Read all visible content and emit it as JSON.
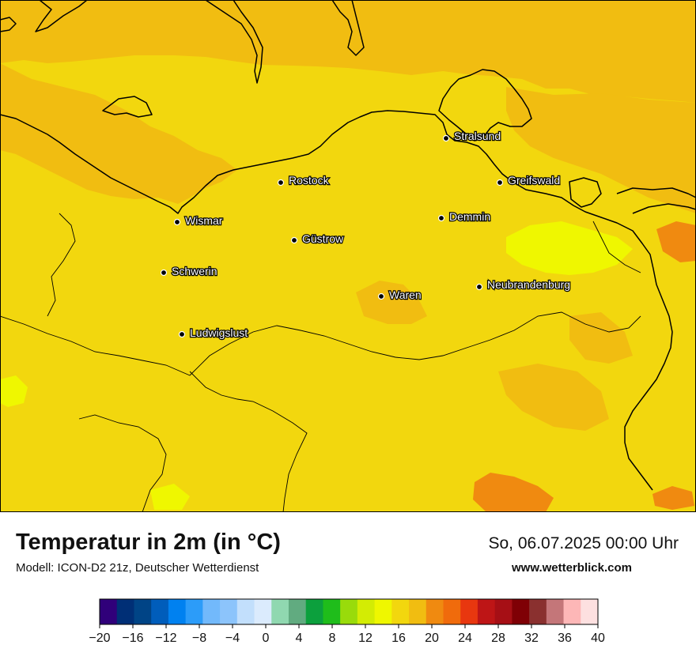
{
  "header": {
    "title": "Temperatur in 2m (in °C)",
    "model": "Modell: ICON-D2 21z, Deutscher Wetterdienst",
    "datetime": "So, 06.07.2025 00:00 Uhr",
    "website": "www.wetterblick.com"
  },
  "colors": {
    "dominant_field": "#f2d70e",
    "warmer_band": "#f1bd11",
    "cooler_patch": "#eff700",
    "warm_spot": "#f08a10",
    "coastline": "#000000",
    "city_label": "#ffffff"
  },
  "cities": [
    {
      "name": "Stralsund"
    },
    {
      "name": "Rostock"
    },
    {
      "name": "Greifswald"
    },
    {
      "name": "Wismar"
    },
    {
      "name": "Demmin"
    },
    {
      "name": "Güstrow"
    },
    {
      "name": "Schwerin"
    },
    {
      "name": "Neubrandenburg"
    },
    {
      "name": "Waren"
    },
    {
      "name": "Ludwigslust"
    }
  ],
  "colorbar": {
    "ticks": [
      "−20",
      "−16",
      "−12",
      "−8",
      "−4",
      "0",
      "4",
      "8",
      "12",
      "16",
      "20",
      "24",
      "28",
      "32",
      "36",
      "40"
    ],
    "bins": [
      "#30007a",
      "#002f76",
      "#004486",
      "#005dbb",
      "#0081f0",
      "#2c9cf9",
      "#72b9fb",
      "#8cc4fb",
      "#c2dffc",
      "#dbebfd",
      "#90d8b0",
      "#61ab80",
      "#0ca03d",
      "#1fbd1b",
      "#99db0b",
      "#d3ec04",
      "#eff700",
      "#f2d70e",
      "#f1bd11",
      "#f08a10",
      "#f06b0c",
      "#e8370f",
      "#be1516",
      "#a60f15",
      "#7f0005",
      "#8a302f",
      "#c47679",
      "#fdb7b7",
      "#fde0e0"
    ]
  }
}
